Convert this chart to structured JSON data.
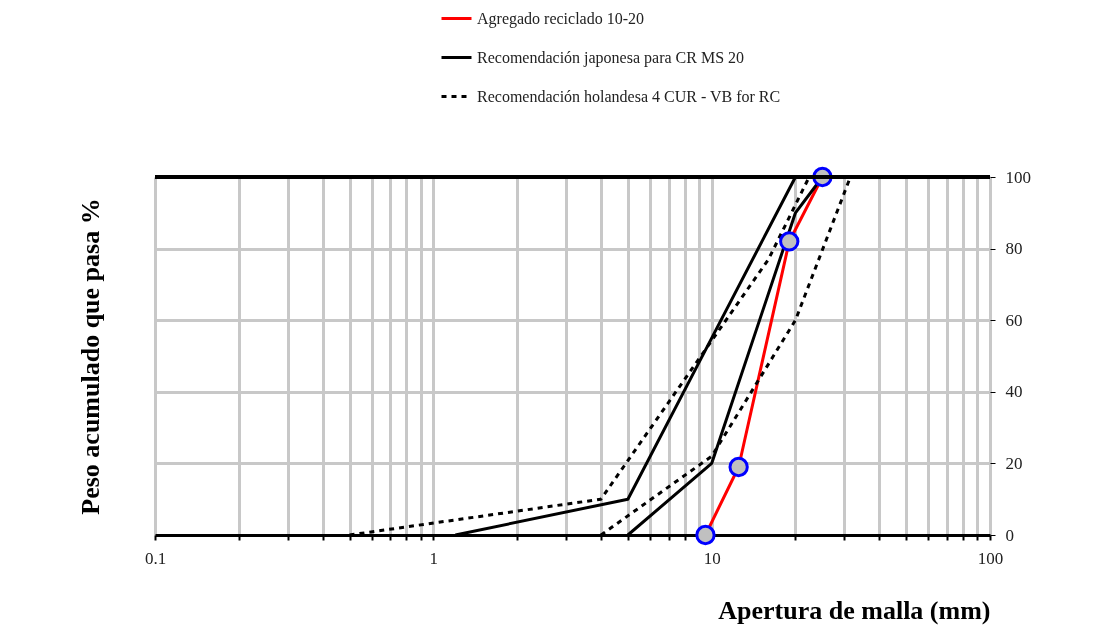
{
  "chart_data": {
    "type": "line",
    "xlabel": "Apertura de malla (mm)",
    "ylabel": "Peso acumulado que pasa %",
    "log": "x",
    "grid": true,
    "legend": "top",
    "xlim": [
      0.1,
      100
    ],
    "xticks": [
      0.1,
      {
        "value": 0.2,
        "label": null
      },
      {
        "value": 0.3,
        "label": null
      },
      {
        "value": 0.4,
        "label": null
      },
      {
        "value": 0.5,
        "label": null
      },
      {
        "value": 0.6,
        "label": null
      },
      {
        "value": 0.7,
        "label": null
      },
      {
        "value": 0.8,
        "label": null
      },
      {
        "value": 0.9,
        "label": null
      },
      1,
      {
        "value": 2,
        "label": null
      },
      {
        "value": 3,
        "label": null
      },
      {
        "value": 4,
        "label": null
      },
      {
        "value": 5,
        "label": null
      },
      {
        "value": 6,
        "label": null
      },
      {
        "value": 7,
        "label": null
      },
      {
        "value": 8,
        "label": null
      },
      {
        "value": 9,
        "label": null
      },
      10,
      {
        "value": 20,
        "label": null
      },
      {
        "value": 30,
        "label": null
      },
      {
        "value": 40,
        "label": null
      },
      {
        "value": 50,
        "label": null
      },
      {
        "value": 60,
        "label": null
      },
      {
        "value": 70,
        "label": null
      },
      {
        "value": 80,
        "label": null
      },
      {
        "value": 90,
        "label": null
      },
      100
    ],
    "ylim": [
      0,
      100
    ],
    "yticks": [
      0,
      20,
      40,
      60,
      80,
      100
    ],
    "series": [
      {
        "name": "Agregado reciclado 10-20",
        "color": "#ff0000",
        "marker": "circle",
        "line_style": "solid",
        "x": [
          9.5,
          12.5,
          19,
          25
        ],
        "values": [
          0,
          19,
          82,
          100
        ]
      },
      {
        "name": "Recomendación japonesa para CR MS 20",
        "color": "#000000",
        "line_style": "solid",
        "x": [
          1.2,
          5,
          10,
          20
        ],
        "values": [
          0,
          10,
          55,
          100
        ]
      },
      {
        "color": "#000000",
        "line_style": "solid",
        "x": [
          5,
          10,
          20,
          25
        ],
        "values": [
          0,
          20,
          90,
          100
        ]
      },
      {
        "name": "Recomendación holandesa 4 CUR - VB for RC",
        "color": "#000000",
        "line_style": "dashed",
        "x": [
          0.5,
          4,
          16,
          22.4
        ],
        "values": [
          0,
          10,
          77,
          100
        ]
      },
      {
        "color": "#000000",
        "line_style": "dashed",
        "x": [
          4,
          10,
          20,
          31.5
        ],
        "values": [
          0,
          22,
          60,
          100
        ]
      }
    ]
  }
}
